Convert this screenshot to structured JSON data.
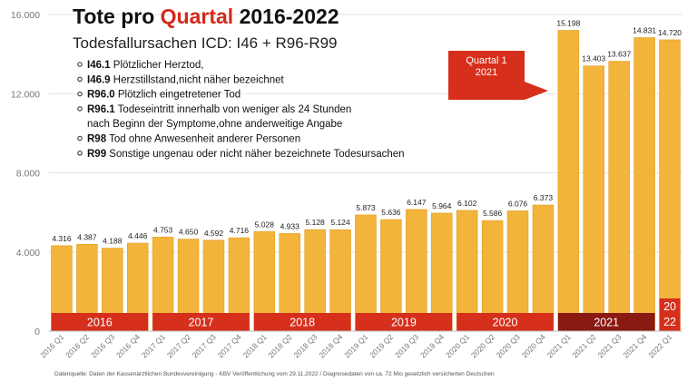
{
  "title_prefix": "Tote pro ",
  "title_highlight": "Quartal",
  "title_suffix": " 2016-2022",
  "subtitle": "Todesfallursachen ICD: I46 + R96-R99",
  "legend_items": [
    {
      "code": "I46.1",
      "text": " Plötzlicher Herztod,"
    },
    {
      "code": "I46.9",
      "text": " Herzstillstand,nicht näher bezeichnet"
    },
    {
      "code": "R96.0",
      "text": " Plötzlich eingetretener Tod"
    },
    {
      "code": "R96.1",
      "text": " Todeseintritt innerhalb von weniger als 24 Stunden"
    },
    {
      "code": "",
      "text": "nach Beginn der Symptome,ohne anderweitige Angabe"
    },
    {
      "code": "R98",
      "text": " Tod ohne Anwesenheit anderer Personen"
    },
    {
      "code": "R99",
      "text": " Sonstige ungenau oder nicht näher bezeichnete Todesursachen"
    }
  ],
  "callout": {
    "line1": "Quartal 1",
    "line2": "2021"
  },
  "source": "Datenquelle: Daten der Kassenärztlichen Bundesvereinigung - KBV Veröffentlichung vom 29.11.2022 / Diagnosedaten von ca. 72 Mio gesetzlich versicherten Deutschen",
  "colors": {
    "bar": "#f2b43b",
    "bar_edge": "#e39e22",
    "year_band": "#d62f1c",
    "year_band_2021": "#8a1912",
    "title_highlight": "#d4291c",
    "grid": "#e3e3e3"
  },
  "chart_data": {
    "type": "bar",
    "title": "Tote pro Quartal 2016-2022",
    "ylim": [
      0,
      16000
    ],
    "yticks": [
      0,
      4000,
      8000,
      12000,
      16000
    ],
    "ytick_labels": [
      "0",
      "4.000",
      "8.000",
      "12.000",
      "16.000"
    ],
    "grid": true,
    "categories": [
      "2016 Q1",
      "2016 Q2",
      "2016 Q3",
      "2016 Q4",
      "2017 Q1",
      "2017 Q2",
      "2017 Q3",
      "2017 Q4",
      "2018 Q1",
      "2018 Q2",
      "2018 Q3",
      "2018 Q4",
      "2019 Q1",
      "2019 Q2",
      "2019 Q3",
      "2019 Q4",
      "2020 Q1",
      "2020 Q2",
      "2020 Q3",
      "2020 Q4",
      "2021 Q1",
      "2021 Q2",
      "2021 Q3",
      "2021 Q4",
      "2022 Q1"
    ],
    "values": [
      4316,
      4387,
      4188,
      4446,
      4753,
      4650,
      4592,
      4716,
      5028,
      4933,
      5128,
      5124,
      5873,
      5636,
      6147,
      5964,
      6102,
      5586,
      6076,
      6373,
      15198,
      13403,
      13637,
      14831,
      14720
    ],
    "value_labels": [
      "4.316",
      "4.387",
      "4.188",
      "4.446",
      "4.753",
      "4.650",
      "4.592",
      "4.716",
      "5.028",
      "4.933",
      "5.128",
      "5.124",
      "5.873",
      "5.636",
      "6.147",
      "5.964",
      "6.102",
      "5.586",
      "6.076",
      "6.373",
      "15.198",
      "13.403",
      "13.637",
      "14.831",
      "14.720"
    ],
    "year_groups": [
      {
        "label": "2016",
        "start": 0,
        "count": 4
      },
      {
        "label": "2017",
        "start": 4,
        "count": 4
      },
      {
        "label": "2018",
        "start": 8,
        "count": 4
      },
      {
        "label": "2019",
        "start": 12,
        "count": 4
      },
      {
        "label": "2020",
        "start": 16,
        "count": 4
      },
      {
        "label": "2021",
        "start": 20,
        "count": 4
      },
      {
        "label": "20\n22",
        "start": 24,
        "count": 1
      }
    ]
  }
}
